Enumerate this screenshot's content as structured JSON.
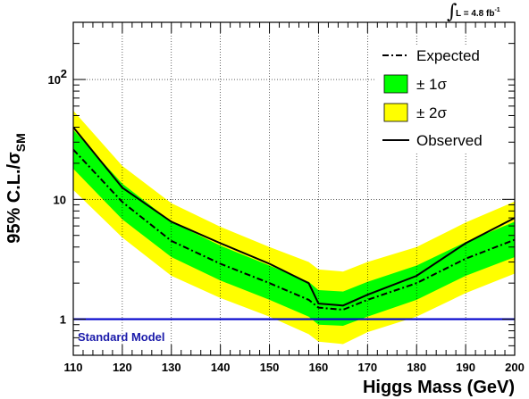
{
  "chart_data": {
    "type": "line",
    "xlabel": "Higgs Mass (GeV)",
    "ylabel_main": "95% C.L./σ",
    "ylabel_sub": "SM",
    "xlim": [
      110,
      200
    ],
    "ylim": [
      0.5,
      300
    ],
    "yscale": "log",
    "grid": true,
    "legend_position": "top-right",
    "x_ticks": [
      110,
      120,
      130,
      140,
      150,
      160,
      170,
      180,
      190,
      200
    ],
    "y_ticks": [
      {
        "value": 1,
        "label": "1"
      },
      {
        "value": 10,
        "label": "10"
      },
      {
        "value": 100,
        "label": "10",
        "sup": "2"
      }
    ],
    "annotation": {
      "prefix": "∫",
      "text": "L = 4.8 fb",
      "sup": "-1"
    },
    "x": [
      110,
      120,
      130,
      140,
      150,
      158,
      160,
      165,
      170,
      180,
      190,
      200
    ],
    "expected": [
      26,
      9.5,
      4.5,
      2.9,
      2.0,
      1.45,
      1.25,
      1.2,
      1.45,
      2.0,
      3.2,
      4.6
    ],
    "observed": [
      40,
      12.5,
      6.5,
      4.3,
      2.9,
      2.0,
      1.35,
      1.3,
      1.6,
      2.3,
      4.3,
      7.0
    ],
    "band_1sigma": {
      "low": [
        18,
        6.8,
        3.3,
        2.1,
        1.45,
        1.05,
        0.9,
        0.88,
        1.05,
        1.45,
        2.3,
        3.3
      ],
      "high": [
        38,
        13.5,
        6.5,
        4.1,
        2.8,
        2.05,
        1.75,
        1.7,
        2.05,
        2.8,
        4.4,
        6.5
      ]
    },
    "band_2sigma": {
      "low": [
        12,
        4.8,
        2.3,
        1.5,
        1.05,
        0.75,
        0.65,
        0.62,
        0.78,
        1.05,
        1.65,
        2.4
      ],
      "high": [
        55,
        19,
        9.3,
        5.9,
        4.0,
        3.0,
        2.6,
        2.5,
        3.0,
        4.0,
        6.4,
        9.6
      ]
    },
    "standard_model": {
      "value": 1,
      "label": "Standard Model"
    },
    "legend": [
      {
        "key": "expected",
        "label": "Expected",
        "style": "dash-dot"
      },
      {
        "key": "band_1sigma",
        "label": "± 1σ",
        "style": "fill"
      },
      {
        "key": "band_2sigma",
        "label": "± 2σ",
        "style": "fill"
      },
      {
        "key": "observed",
        "label": "Observed",
        "style": "solid"
      }
    ],
    "colors": {
      "band_1sigma": "#00ff00",
      "band_2sigma": "#ffff00",
      "expected": "#000000",
      "observed": "#000000",
      "standard_model": "#0000cc",
      "standard_model_text": "#1a1aaa"
    }
  }
}
